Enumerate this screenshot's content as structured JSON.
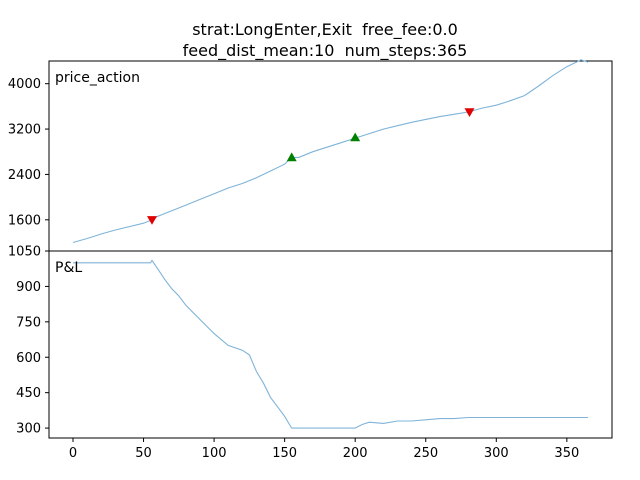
{
  "title": {
    "line1": "strat:LongEnter,Exit  free_fee:0.0",
    "line2": "feed_dist_mean:10  num_steps:365"
  },
  "colors": {
    "line": "#7fb4d8",
    "buy_marker": "#008000",
    "sell_marker": "#e00000"
  },
  "chart_data": [
    {
      "type": "line",
      "panel_label": "price_action",
      "xlim": [
        -17,
        382
      ],
      "ylim": [
        1050,
        4400
      ],
      "yticks": [
        1050,
        1600,
        2400,
        3200,
        4000
      ],
      "series": [
        {
          "x": [
            0,
            10,
            20,
            30,
            40,
            50,
            55,
            60,
            70,
            80,
            90,
            100,
            110,
            120,
            130,
            140,
            150,
            155,
            160,
            170,
            180,
            190,
            200,
            210,
            220,
            230,
            240,
            250,
            260,
            270,
            280,
            290,
            300,
            310,
            320,
            330,
            340,
            350,
            360,
            365
          ],
          "y": [
            1200,
            1270,
            1350,
            1420,
            1480,
            1540,
            1590,
            1660,
            1760,
            1860,
            1960,
            2060,
            2160,
            2240,
            2340,
            2460,
            2580,
            2700,
            2700,
            2800,
            2880,
            2960,
            3040,
            3120,
            3200,
            3260,
            3320,
            3370,
            3420,
            3460,
            3500,
            3570,
            3620,
            3700,
            3790,
            3960,
            4140,
            4300,
            4420,
            4380
          ]
        }
      ],
      "markers": [
        {
          "kind": "sell",
          "x": 56,
          "y": 1600
        },
        {
          "kind": "buy",
          "x": 155,
          "y": 2700
        },
        {
          "kind": "buy",
          "x": 200,
          "y": 3050
        },
        {
          "kind": "sell",
          "x": 281,
          "y": 3500
        }
      ]
    },
    {
      "type": "line",
      "panel_label": "P&L",
      "xlim": [
        -17,
        382
      ],
      "ylim": [
        258,
        1050
      ],
      "yticks": [
        300,
        450,
        600,
        750,
        900
      ],
      "xticks": [
        0,
        50,
        100,
        150,
        200,
        250,
        300,
        350
      ],
      "series": [
        {
          "x": [
            0,
            20,
            40,
            55,
            56,
            60,
            65,
            70,
            75,
            80,
            90,
            100,
            110,
            120,
            125,
            130,
            135,
            140,
            145,
            150,
            155,
            160,
            170,
            180,
            190,
            200,
            205,
            210,
            220,
            230,
            240,
            250,
            260,
            270,
            280,
            290,
            300,
            320,
            340,
            365
          ],
          "y": [
            1000,
            1000,
            1000,
            1000,
            1010,
            975,
            930,
            890,
            860,
            820,
            760,
            700,
            650,
            630,
            610,
            540,
            490,
            430,
            390,
            350,
            300,
            300,
            300,
            300,
            300,
            300,
            315,
            325,
            320,
            330,
            330,
            335,
            340,
            340,
            345,
            345,
            345,
            345,
            345,
            345
          ]
        }
      ]
    }
  ]
}
